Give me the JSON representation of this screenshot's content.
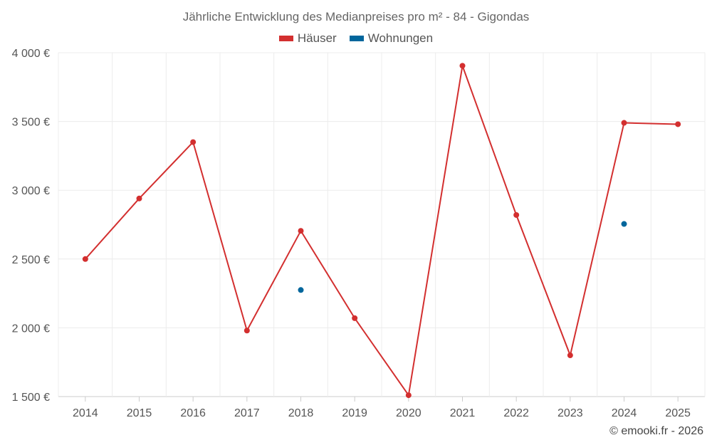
{
  "chart_data": {
    "type": "line",
    "title": "Jährliche Entwicklung des Medianpreises pro m² - 84 - Gigondas",
    "categories": [
      "2014",
      "2015",
      "2016",
      "2017",
      "2018",
      "2019",
      "2020",
      "2021",
      "2022",
      "2023",
      "2024",
      "2025"
    ],
    "series": [
      {
        "name": "Häuser",
        "color": "#d32f2f",
        "values": [
          2500,
          2940,
          3350,
          1980,
          2705,
          2070,
          1510,
          3905,
          2820,
          1800,
          3490,
          3480
        ]
      },
      {
        "name": "Wohnungen",
        "color": "#01669c",
        "values": [
          null,
          null,
          null,
          null,
          2275,
          null,
          null,
          null,
          null,
          null,
          2755,
          null
        ]
      }
    ],
    "ylim": [
      1500,
      4000
    ],
    "yticks": [
      1500,
      2000,
      2500,
      3000,
      3500,
      4000
    ],
    "ytick_labels": [
      "1 500 €",
      "2 000 €",
      "2 500 €",
      "3 000 €",
      "3 500 €",
      "4 000 €"
    ],
    "grid": true,
    "legend": "top-center"
  },
  "footer": {
    "copyright": "© emooki.fr - 2026"
  }
}
